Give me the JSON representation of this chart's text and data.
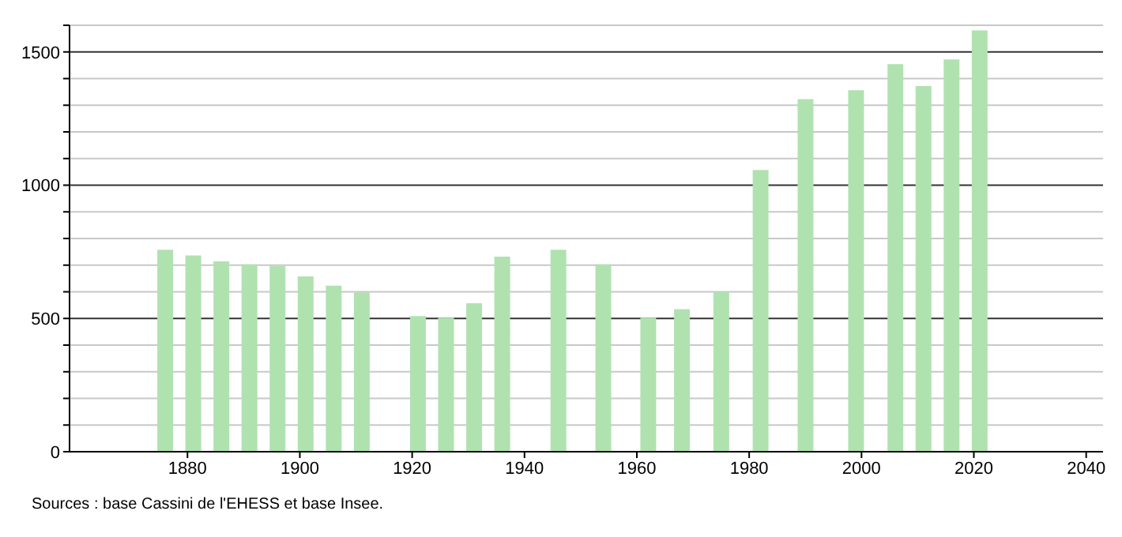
{
  "chart_data": {
    "type": "bar",
    "x": [
      1876,
      1881,
      1886,
      1891,
      1896,
      1901,
      1906,
      1911,
      1921,
      1926,
      1931,
      1936,
      1946,
      1954,
      1962,
      1968,
      1975,
      1982,
      1990,
      1999,
      2006,
      2011,
      2016,
      2021
    ],
    "values": [
      758,
      736,
      714,
      703,
      697,
      658,
      623,
      598,
      509,
      503,
      557,
      732,
      758,
      703,
      503,
      535,
      599,
      1057,
      1323,
      1356,
      1454,
      1372,
      1472,
      1581
    ],
    "color": "#b0e2b0",
    "xlim": [
      1859,
      2043
    ],
    "xticks": [
      1880,
      1900,
      1920,
      1940,
      1960,
      1980,
      2000,
      2020,
      2040
    ],
    "ylim": [
      0,
      1600
    ],
    "yticks": [
      0,
      {
        "value": 100,
        "label": null
      },
      {
        "value": 200,
        "label": null
      },
      {
        "value": 300,
        "label": null
      },
      {
        "value": 400,
        "label": null
      },
      500,
      {
        "value": 600,
        "label": null
      },
      {
        "value": 700,
        "label": null
      },
      {
        "value": 800,
        "label": null
      },
      {
        "value": 900,
        "label": null
      },
      1000,
      {
        "value": 1100,
        "label": null
      },
      {
        "value": 1200,
        "label": null
      },
      {
        "value": 1300,
        "label": null
      },
      {
        "value": 1400,
        "label": null
      },
      1500,
      {
        "value": 1600,
        "label": null
      }
    ],
    "grid": "y",
    "annotations": [
      "Sources : base Cassini de l'EHESS et base Insee."
    ]
  }
}
